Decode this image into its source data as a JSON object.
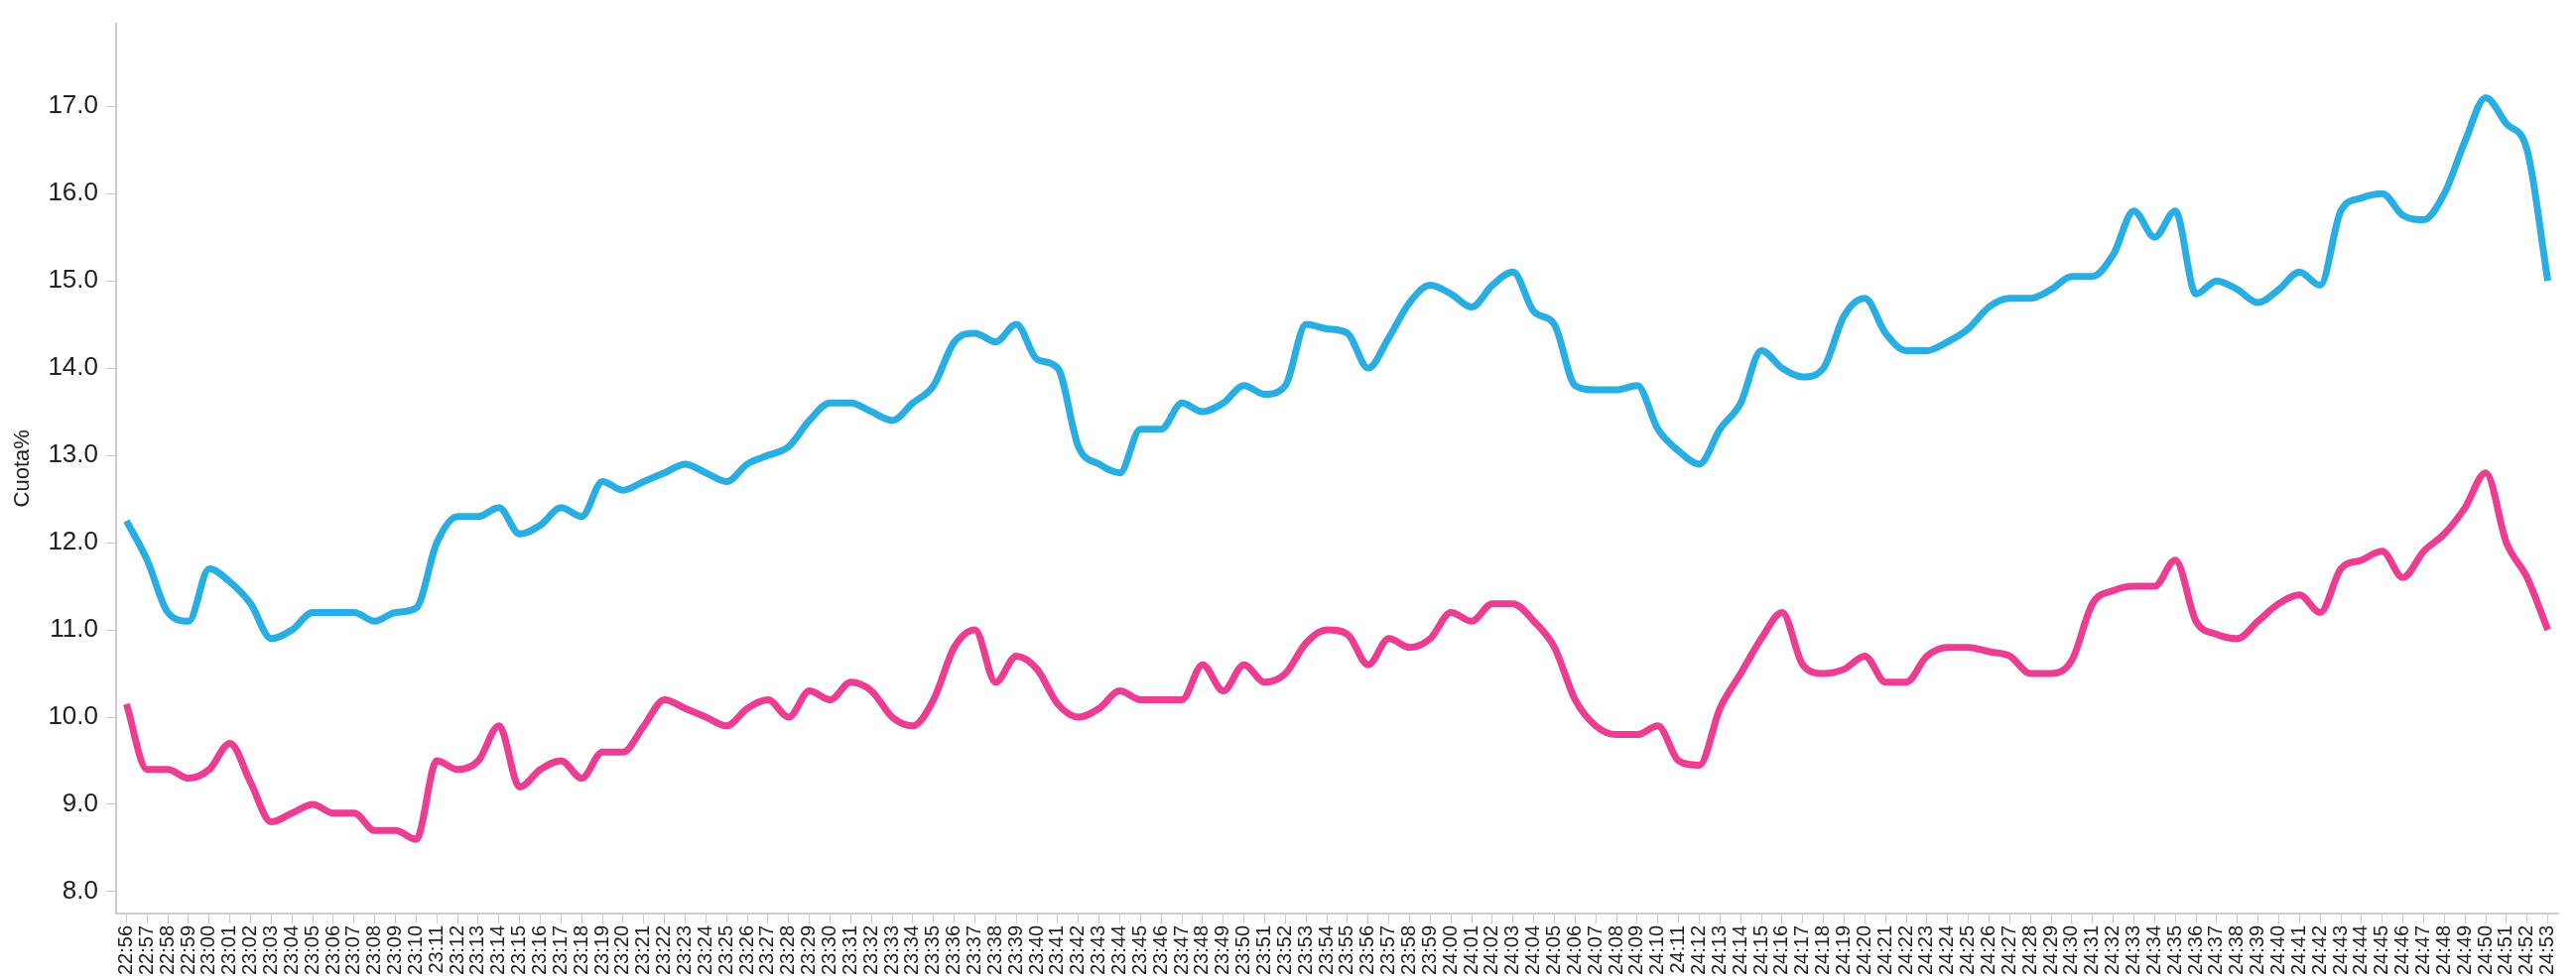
{
  "chart_data": {
    "type": "line",
    "ylabel": "Cuota%",
    "categories": [
      "22:56",
      "22:57",
      "22:58",
      "22:59",
      "23:00",
      "23:01",
      "23:02",
      "23:03",
      "23:04",
      "23:05",
      "23:06",
      "23:07",
      "23:08",
      "23:09",
      "23:10",
      "23:11",
      "23:12",
      "23:13",
      "23:14",
      "23:15",
      "23:16",
      "23:17",
      "23:18",
      "23:19",
      "23:20",
      "23:21",
      "23:22",
      "23:23",
      "23:24",
      "23:25",
      "23:26",
      "23:27",
      "23:28",
      "23:29",
      "23:30",
      "23:31",
      "23:32",
      "23:33",
      "23:34",
      "23:35",
      "23:36",
      "23:37",
      "23:38",
      "23:39",
      "23:40",
      "23:41",
      "23:42",
      "23:43",
      "23:44",
      "23:45",
      "23:46",
      "23:47",
      "23:48",
      "23:49",
      "23:50",
      "23:51",
      "23:52",
      "23:53",
      "23:54",
      "23:55",
      "23:56",
      "23:57",
      "23:58",
      "23:59",
      "24:00",
      "24:01",
      "24:02",
      "24:03",
      "24:04",
      "24:05",
      "24:06",
      "24:07",
      "24:08",
      "24:09",
      "24:10",
      "24:11",
      "24:12",
      "24:13",
      "24:14",
      "24:15",
      "24:16",
      "24:17",
      "24:18",
      "24:19",
      "24:20",
      "24:21",
      "24:22",
      "24:23",
      "24:24",
      "24:25",
      "24:26",
      "24:27",
      "24:28",
      "24:29",
      "24:30",
      "24:31",
      "24:32",
      "24:33",
      "24:34",
      "24:35",
      "24:36",
      "24:37",
      "24:38",
      "24:39",
      "24:40",
      "24:41",
      "24:42",
      "24:43",
      "24:44",
      "24:45",
      "24:46",
      "24:47",
      "24:48",
      "24:49",
      "24:50",
      "24:51",
      "24:52",
      "24:53"
    ],
    "series": [
      {
        "color": "#29aee3",
        "values": [
          12.25,
          11.8,
          11.2,
          11.1,
          11.7,
          11.55,
          11.3,
          10.9,
          11.0,
          11.2,
          11.2,
          11.2,
          11.1,
          11.2,
          11.25,
          12.0,
          12.3,
          12.3,
          12.4,
          12.1,
          12.2,
          12.4,
          12.3,
          12.7,
          12.6,
          12.7,
          12.8,
          12.9,
          12.8,
          12.7,
          12.9,
          13.0,
          13.1,
          13.4,
          13.6,
          13.6,
          13.5,
          13.4,
          13.6,
          13.8,
          14.3,
          14.4,
          14.3,
          14.5,
          14.1,
          14.0,
          13.1,
          12.9,
          12.8,
          13.3,
          13.3,
          13.6,
          13.5,
          13.6,
          13.8,
          13.7,
          13.8,
          14.5,
          14.45,
          14.4,
          14.0,
          14.35,
          14.75,
          14.95,
          14.85,
          14.7,
          14.95,
          15.1,
          14.65,
          14.5,
          13.8,
          13.75,
          13.75,
          13.8,
          13.3,
          13.05,
          12.9,
          13.3,
          13.6,
          14.2,
          14.0,
          13.9,
          14.0,
          14.6,
          14.8,
          14.4,
          14.2,
          14.2,
          14.3,
          14.45,
          14.7,
          14.8,
          14.8,
          14.9,
          15.05,
          15.05,
          15.3,
          15.8,
          15.5,
          15.8,
          14.85,
          15.0,
          14.9,
          14.75,
          14.9,
          15.1,
          14.95,
          15.8,
          15.95,
          16.0,
          15.75,
          15.7,
          16.0,
          16.6,
          17.1,
          16.8,
          16.5,
          15.0
        ]
      },
      {
        "color": "#ec3d93",
        "values": [
          10.15,
          9.4,
          9.4,
          9.3,
          9.4,
          9.7,
          9.25,
          8.8,
          8.9,
          9.0,
          8.9,
          8.9,
          8.7,
          8.7,
          8.6,
          9.5,
          9.4,
          9.5,
          9.9,
          9.2,
          9.4,
          9.5,
          9.3,
          9.6,
          9.6,
          9.9,
          10.2,
          10.1,
          10.0,
          9.9,
          10.1,
          10.2,
          10.0,
          10.3,
          10.2,
          10.4,
          10.3,
          10.0,
          9.9,
          10.2,
          10.8,
          11.0,
          10.4,
          10.7,
          10.55,
          10.15,
          10.0,
          10.1,
          10.3,
          10.2,
          10.2,
          10.2,
          10.6,
          10.3,
          10.6,
          10.4,
          10.5,
          10.85,
          11.0,
          10.95,
          10.6,
          10.9,
          10.8,
          10.9,
          11.2,
          11.1,
          11.3,
          11.3,
          11.1,
          10.8,
          10.2,
          9.9,
          9.8,
          9.8,
          9.9,
          9.5,
          9.45,
          10.1,
          10.5,
          10.9,
          11.2,
          10.6,
          10.5,
          10.55,
          10.7,
          10.4,
          10.4,
          10.7,
          10.8,
          10.8,
          10.75,
          10.7,
          10.5,
          10.5,
          10.65,
          11.3,
          11.45,
          11.5,
          11.5,
          11.8,
          11.1,
          10.95,
          10.9,
          11.1,
          11.3,
          11.4,
          11.2,
          11.7,
          11.8,
          11.9,
          11.6,
          11.9,
          12.1,
          12.4,
          12.8,
          12.0,
          11.6,
          11.0
        ]
      }
    ],
    "ylim": [
      7.75,
      17.95
    ],
    "yticks": [
      {
        "value": 8,
        "label": "8.0"
      },
      {
        "value": 9,
        "label": "9.0"
      },
      {
        "value": 10,
        "label": "10.0"
      },
      {
        "value": 11,
        "label": "11.0"
      },
      {
        "value": 12,
        "label": "12.0"
      },
      {
        "value": 13,
        "label": "13.0"
      },
      {
        "value": 14,
        "label": "14.0"
      },
      {
        "value": 15,
        "label": "15.0"
      },
      {
        "value": 16,
        "label": "16.0"
      },
      {
        "value": 17,
        "label": "17.0"
      }
    ],
    "grid": false,
    "legend": false,
    "marker": "none",
    "line_style": "solid"
  }
}
